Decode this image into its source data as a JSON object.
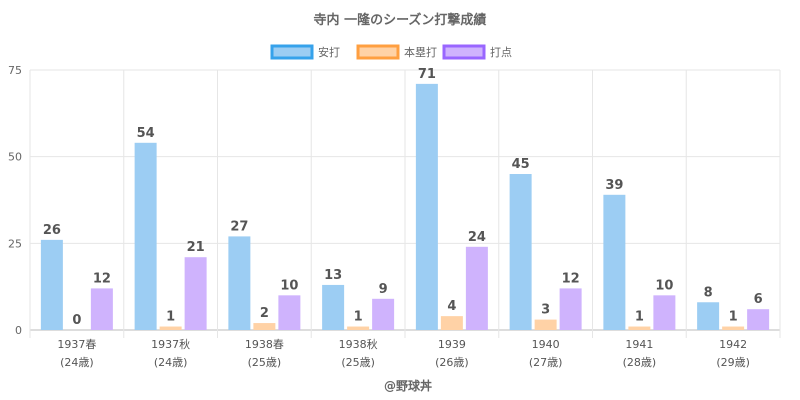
{
  "chart_data": {
    "type": "bar",
    "title": "寺内 一隆のシーズン打撃成績",
    "categories": [
      "1937春",
      "1937秋",
      "1938春",
      "1938秋",
      "1939",
      "1940",
      "1941",
      "1942"
    ],
    "sub_labels": [
      "(24歳)",
      "(24歳)",
      "(25歳)",
      "(25歳)",
      "(26歳)",
      "(27歳)",
      "(28歳)",
      "(29歳)"
    ],
    "series": [
      {
        "name": "安打",
        "values": [
          26,
          54,
          27,
          13,
          71,
          45,
          39,
          8
        ],
        "color": "#9ccdf3",
        "border": "#36a2eb"
      },
      {
        "name": "本塁打",
        "values": [
          0,
          1,
          2,
          1,
          4,
          3,
          1,
          1
        ],
        "color": "#ffd2a6",
        "border": "#ff9f40"
      },
      {
        "name": "打点",
        "values": [
          12,
          21,
          10,
          9,
          24,
          12,
          10,
          6
        ],
        "color": "#cfb3fd",
        "border": "#9966ff"
      }
    ],
    "y_ticks": [
      "0",
      "25",
      "50",
      "75"
    ],
    "ylim": [
      0,
      75
    ],
    "grid": true,
    "legend_position": "top"
  },
  "credit": "@野球丼"
}
